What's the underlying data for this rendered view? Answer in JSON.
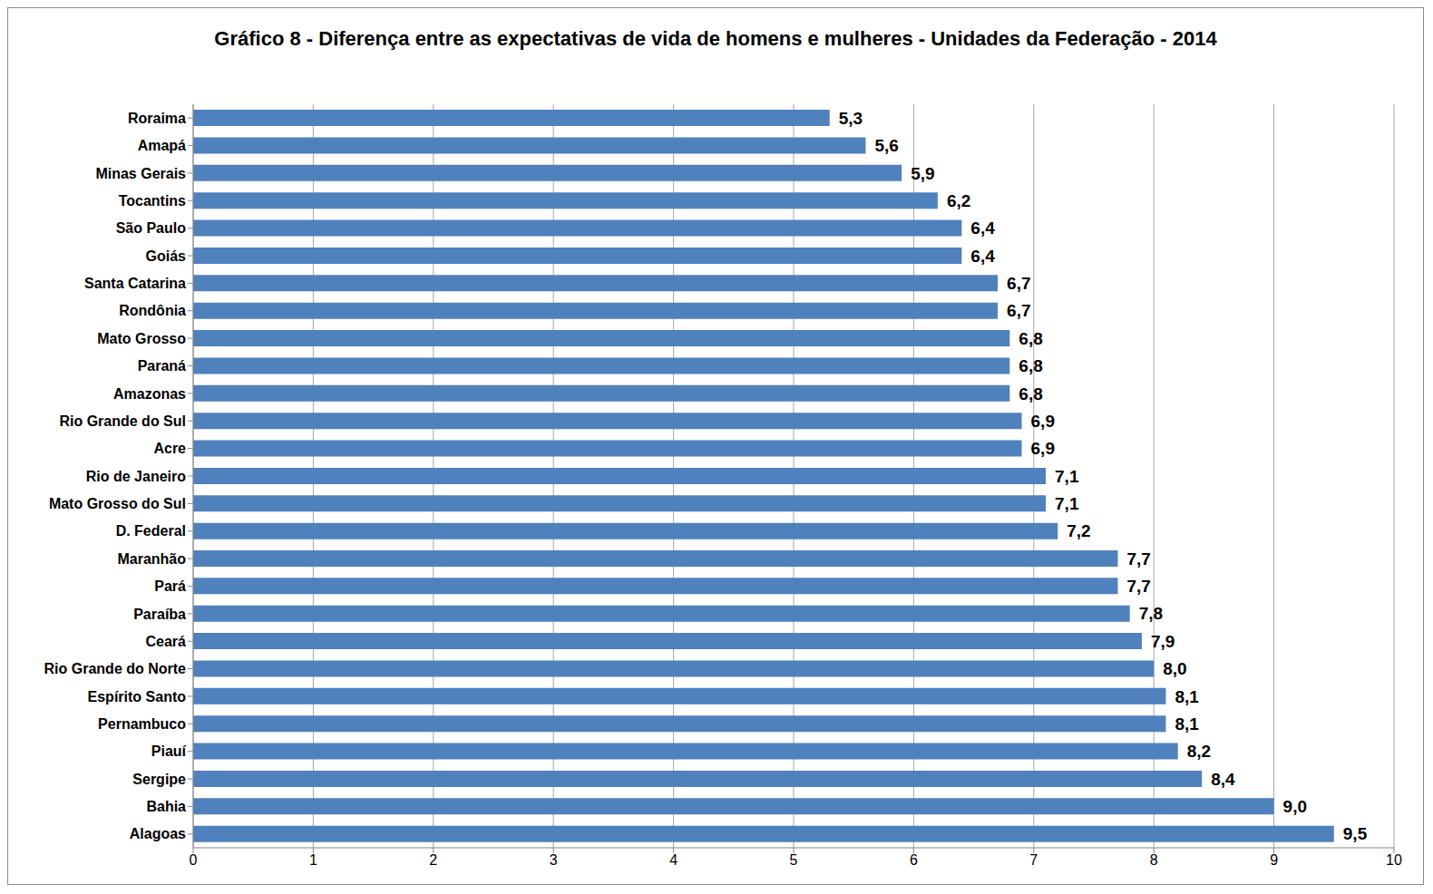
{
  "chart_data": {
    "type": "bar",
    "orientation": "horizontal",
    "title": "Gráfico 8 - Diferença entre as expectativas de vida de homens e mulheres - Unidades da Federação - 2014",
    "categories": [
      "Roraima",
      "Amapá",
      "Minas Gerais",
      "Tocantins",
      "São Paulo",
      "Goiás",
      "Santa Catarina",
      "Rondônia",
      "Mato Grosso",
      "Paraná",
      "Amazonas",
      "Rio Grande do Sul",
      "Acre",
      "Rio de Janeiro",
      "Mato Grosso do Sul",
      "D. Federal",
      "Maranhão",
      "Pará",
      "Paraíba",
      "Ceará",
      "Rio Grande do Norte",
      "Espírito Santo",
      "Pernambuco",
      "Piauí",
      "Sergipe",
      "Bahia",
      "Alagoas"
    ],
    "values": [
      5.3,
      5.6,
      5.9,
      6.2,
      6.4,
      6.4,
      6.7,
      6.7,
      6.8,
      6.8,
      6.8,
      6.9,
      6.9,
      7.1,
      7.1,
      7.2,
      7.7,
      7.7,
      7.8,
      7.9,
      8.0,
      8.1,
      8.1,
      8.2,
      8.4,
      9.0,
      9.5
    ],
    "value_labels": [
      "5,3",
      "5,6",
      "5,9",
      "6,2",
      "6,4",
      "6,4",
      "6,7",
      "6,7",
      "6,8",
      "6,8",
      "6,8",
      "6,9",
      "6,9",
      "7,1",
      "7,1",
      "7,2",
      "7,7",
      "7,7",
      "7,8",
      "7,9",
      "8,0",
      "8,1",
      "8,1",
      "8,2",
      "8,4",
      "9,0",
      "9,5"
    ],
    "color": "#4f81bd",
    "xlim": [
      0,
      10
    ],
    "xticks": [
      0,
      1,
      2,
      3,
      4,
      5,
      6,
      7,
      8,
      9,
      10
    ],
    "grid": true,
    "data_labels": true
  }
}
